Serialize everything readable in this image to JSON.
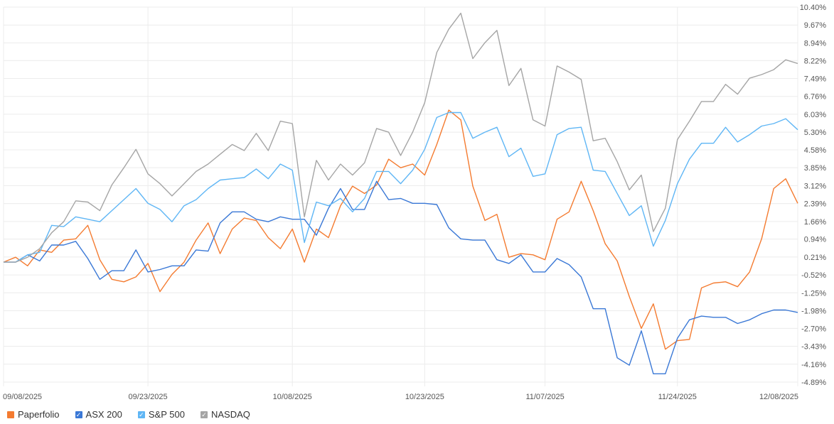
{
  "chart_data": {
    "type": "line",
    "x_ticks": [
      "09/08/2025",
      "09/23/2025",
      "10/08/2025",
      "10/23/2025",
      "11/07/2025",
      "11/24/2025",
      "12/08/2025"
    ],
    "y_ticks": [
      "10.40%",
      "9.67%",
      "8.94%",
      "8.22%",
      "7.49%",
      "6.76%",
      "6.03%",
      "5.30%",
      "4.58%",
      "3.85%",
      "3.12%",
      "2.39%",
      "1.66%",
      "0.94%",
      "0.21%",
      "-0.52%",
      "-1.25%",
      "-1.98%",
      "-2.70%",
      "-3.43%",
      "-4.16%",
      "-4.89%"
    ],
    "ylim": [
      -4.89,
      10.4
    ],
    "x_count": 67,
    "x_tick_indices": [
      0,
      12,
      24,
      35,
      45,
      56,
      66
    ],
    "grid": true,
    "series": [
      {
        "name": "Paperfolio",
        "color": "#f47b30",
        "values": [
          0.0,
          0.2,
          -0.15,
          0.5,
          0.4,
          0.9,
          0.95,
          1.5,
          0.1,
          -0.7,
          -0.8,
          -0.6,
          -0.05,
          -1.2,
          -0.5,
          0.0,
          0.9,
          1.6,
          0.35,
          1.35,
          1.8,
          1.7,
          1.0,
          0.55,
          1.35,
          0.0,
          1.35,
          1.0,
          2.3,
          3.1,
          2.8,
          3.15,
          4.2,
          3.85,
          4.0,
          3.55,
          4.8,
          6.2,
          5.8,
          3.1,
          1.7,
          1.95,
          0.2,
          0.35,
          0.3,
          0.1,
          1.75,
          2.05,
          3.3,
          2.1,
          0.75,
          0.05,
          -1.4,
          -2.7,
          -1.7,
          -3.55,
          -3.2,
          -3.15,
          -1.05,
          -0.85,
          -0.8,
          -1.0,
          -0.4,
          0.95,
          3.0,
          3.4,
          2.4
        ]
      },
      {
        "name": "ASX 200",
        "color": "#3a78d6",
        "values": [
          0.0,
          0.0,
          0.3,
          0.05,
          0.7,
          0.7,
          0.85,
          0.15,
          -0.7,
          -0.35,
          -0.35,
          0.5,
          -0.4,
          -0.3,
          -0.15,
          -0.15,
          0.5,
          0.45,
          1.6,
          2.05,
          2.05,
          1.75,
          1.65,
          1.85,
          1.75,
          1.75,
          1.1,
          2.2,
          3.0,
          2.15,
          2.15,
          3.3,
          2.55,
          2.6,
          2.4,
          2.4,
          2.35,
          1.4,
          0.95,
          0.9,
          0.9,
          0.1,
          -0.05,
          0.3,
          -0.4,
          -0.4,
          0.15,
          -0.1,
          -0.6,
          -1.9,
          -1.9,
          -3.9,
          -4.2,
          -2.8,
          -4.55,
          -4.55,
          -3.1,
          -2.35,
          -2.2,
          -2.25,
          -2.25,
          -2.5,
          -2.35,
          -2.1,
          -1.95,
          -1.95,
          -2.05
        ]
      },
      {
        "name": "S&P 500",
        "color": "#5fb6f5",
        "values": [
          0.0,
          0.0,
          0.3,
          0.4,
          1.5,
          1.45,
          1.85,
          1.75,
          1.65,
          2.1,
          2.55,
          3.0,
          2.4,
          2.15,
          1.65,
          2.3,
          2.55,
          3.0,
          3.35,
          3.4,
          3.45,
          3.8,
          3.4,
          4.0,
          3.75,
          0.8,
          2.45,
          2.3,
          2.6,
          2.05,
          2.6,
          3.7,
          3.7,
          3.2,
          3.75,
          4.6,
          5.9,
          6.1,
          6.1,
          5.05,
          5.3,
          5.5,
          4.3,
          4.65,
          3.5,
          3.6,
          5.2,
          5.45,
          5.5,
          3.75,
          3.7,
          2.8,
          1.9,
          2.3,
          0.65,
          1.7,
          3.2,
          4.2,
          4.85,
          4.85,
          5.5,
          4.9,
          5.2,
          5.55,
          5.65,
          5.85,
          5.4
        ]
      },
      {
        "name": "NASDAQ",
        "color": "#a5a5a5",
        "values": [
          0.0,
          0.0,
          0.2,
          0.55,
          1.2,
          1.65,
          2.5,
          2.45,
          2.1,
          3.15,
          3.85,
          4.6,
          3.6,
          3.2,
          2.7,
          3.2,
          3.7,
          4.0,
          4.4,
          4.8,
          4.55,
          5.25,
          4.55,
          5.75,
          5.65,
          1.85,
          4.15,
          3.35,
          4.0,
          3.55,
          4.05,
          5.45,
          5.3,
          4.35,
          5.3,
          6.5,
          8.55,
          9.5,
          10.15,
          8.3,
          8.95,
          9.45,
          7.2,
          7.9,
          5.8,
          5.55,
          8.0,
          7.75,
          7.45,
          4.95,
          5.05,
          4.1,
          2.95,
          3.55,
          1.25,
          2.2,
          5.0,
          5.75,
          6.55,
          6.55,
          7.25,
          6.85,
          7.5,
          7.65,
          7.85,
          8.25,
          8.1
        ]
      }
    ]
  },
  "legend": {
    "items": [
      {
        "label": "Paperfolio",
        "color": "#f47b30",
        "checked": false
      },
      {
        "label": "ASX 200",
        "color": "#3a78d6",
        "checked": true
      },
      {
        "label": "S&P 500",
        "color": "#5fb6f5",
        "checked": true
      },
      {
        "label": "NASDAQ",
        "color": "#a5a5a5",
        "checked": true
      }
    ]
  }
}
